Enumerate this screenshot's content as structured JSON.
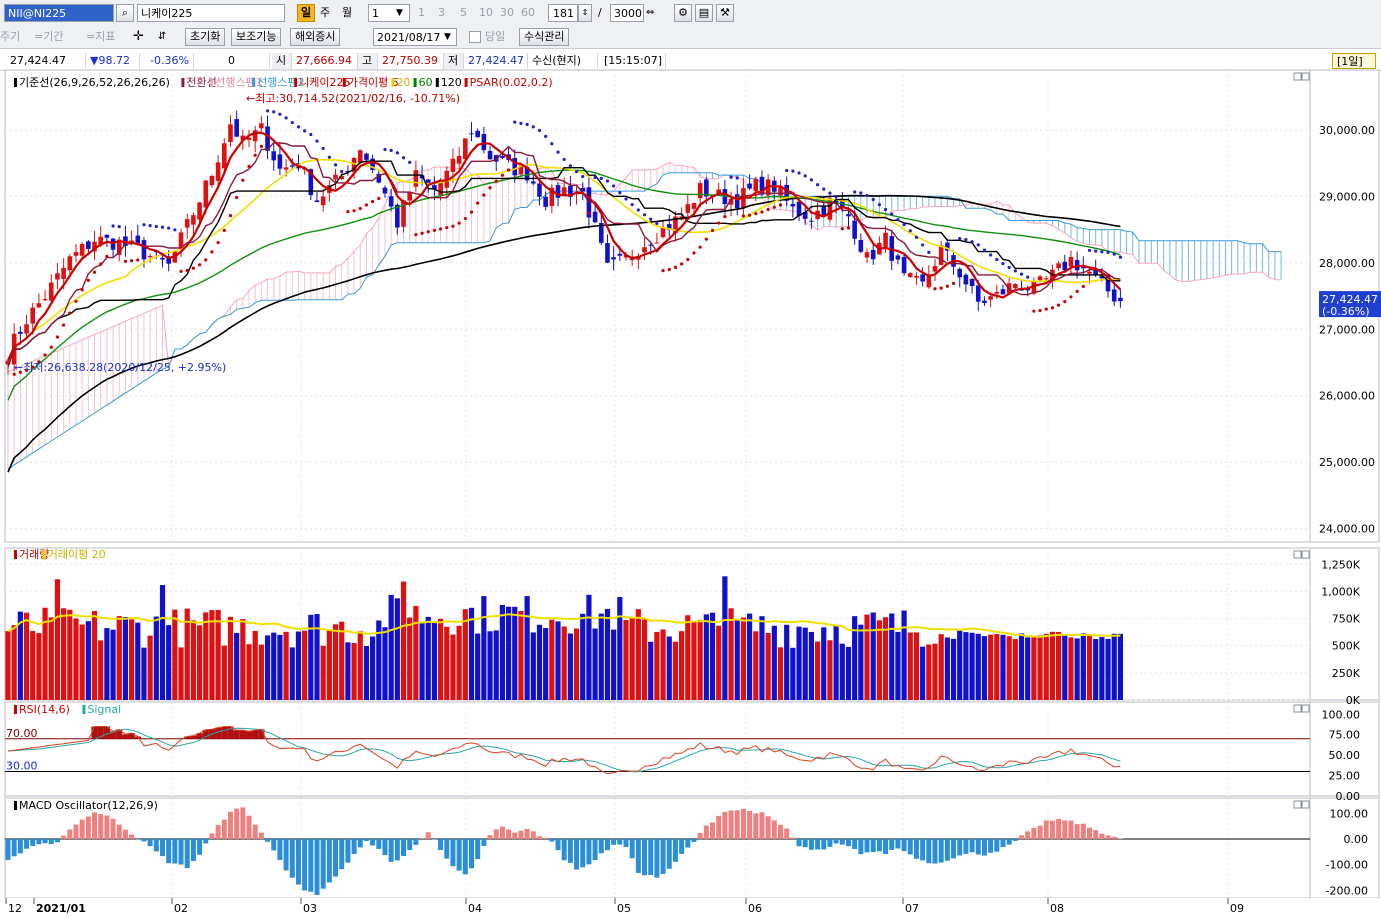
{
  "toolbar": {
    "symbol_code": "NII@NI225",
    "symbol_name": "니케이225",
    "period_day": "일",
    "period_week": "주",
    "period_month": "월",
    "interval_value": "1",
    "interval_options": [
      "1",
      "3",
      "5",
      "10",
      "30",
      "60"
    ],
    "bar_count": "181",
    "bar_total": "3000",
    "bar_sep": "/",
    "period_label": "주기",
    "range_label": "=기간",
    "indicator_label": "=지표",
    "reset_label": "초기화",
    "aux_label": "보조기능",
    "foreign_label": "해외증시",
    "date_value": "2021/08/17",
    "today_label": "당일",
    "formula_label": "수식관리"
  },
  "pricebar": {
    "last": "27,424.47",
    "change": "▼98.72",
    "change_pct": "-0.36%",
    "volume": "0",
    "open_label": "시",
    "open": "27,666.94",
    "high_label": "고",
    "high": "27,750.39",
    "low_label": "저",
    "low": "27,424.47",
    "mode": "수신(현지)",
    "time": "[15:15:07]",
    "unit_badge": "[1일]"
  },
  "legend_main": [
    {
      "text": "기준선(26,9,26,52,26,26,26)",
      "color": "#000000"
    },
    {
      "text": "전환선",
      "color": "#8b1a3a"
    },
    {
      "text": "선행스팬1",
      "color": "#f4a9b8"
    },
    {
      "text": "선행스팬2",
      "color": "#3b9ad9"
    },
    {
      "text": "니케이225",
      "color": "#cc0000"
    },
    {
      "text": "가격이평 5",
      "color": "#cc0000"
    },
    {
      "text": "20",
      "color": "#e6d000"
    },
    {
      "text": "60",
      "color": "#008000"
    },
    {
      "text": "120",
      "color": "#000000"
    },
    {
      "text": "PSAR(0.02,0.2)",
      "color": "#cc0000"
    }
  ],
  "annotations": {
    "high": "←최고:30,714.52(2021/02/16, -10.71%)",
    "low": "←최저:26,638.28(2020/12/25, +2.95%)",
    "last_price": "27,424.47",
    "last_change": "(-0.36%)"
  },
  "legend_volume": [
    {
      "text": "거래량",
      "color": "#cc0000"
    },
    {
      "text": "거래이평 20",
      "color": "#e6d000"
    }
  ],
  "legend_rsi": [
    {
      "text": "RSI(14,6)",
      "color": "#cc0000"
    },
    {
      "text": "Signal",
      "color": "#2aa7a7"
    }
  ],
  "rsi_levels": {
    "upper": "70.00",
    "lower": "30.00"
  },
  "legend_macd": [
    {
      "text": "MACD Oscillator(12,26,9)",
      "color": "#000000"
    }
  ],
  "colors": {
    "up": "#dd1111",
    "down": "#1111cc",
    "ma5": "#cc0000",
    "ma20": "#f0e000",
    "ma60": "#109010",
    "ma120": "#000000",
    "kijun": "#000000",
    "tenkan": "#8b1a3a",
    "span1": "#f4a9b8",
    "span2": "#3b9ad9",
    "psar_up": "#cc0000",
    "psar_down": "#2222cc",
    "vol_ma": "#f0e000",
    "rsi": "#e04020",
    "rsi_signal": "#2aa7a7",
    "macd_pos": "#f08080",
    "macd_neg": "#2a8fd8"
  },
  "chart_data": [
    {
      "type": "candlestick",
      "title": "",
      "series_name": "니케이225",
      "ylim": [
        23800,
        30900
      ],
      "y_ticks": [
        "30,000.00",
        "29,000.00",
        "28,000.00",
        "27,000.00",
        "26,000.00",
        "25,000.00",
        "24,000.00"
      ],
      "y_tick_values": [
        30000,
        29000,
        28000,
        27000,
        26000,
        25000,
        24000
      ],
      "x_labels": [
        "12",
        "2021/01",
        "02",
        "03",
        "04",
        "05",
        "06",
        "07",
        "08",
        "09"
      ],
      "overlays": [
        "기준선",
        "전환선",
        "선행스팬1",
        "선행스팬2",
        "가격이평 5",
        "20",
        "60",
        "120",
        "PSAR(0.02,0.2)"
      ],
      "anchors_close": [
        [
          0,
          26660
        ],
        [
          3,
          27150
        ],
        [
          6,
          27500
        ],
        [
          10,
          28050
        ],
        [
          14,
          28350
        ],
        [
          18,
          28300
        ],
        [
          22,
          28150
        ],
        [
          26,
          27950
        ],
        [
          29,
          28550
        ],
        [
          33,
          29350
        ],
        [
          36,
          30100
        ],
        [
          38,
          29800
        ],
        [
          41,
          30000
        ],
        [
          44,
          29400
        ],
        [
          47,
          29500
        ],
        [
          50,
          28950
        ],
        [
          54,
          29300
        ],
        [
          57,
          29750
        ],
        [
          60,
          29250
        ],
        [
          63,
          28600
        ],
        [
          66,
          29300
        ],
        [
          69,
          29100
        ],
        [
          72,
          29450
        ],
        [
          75,
          30000
        ],
        [
          78,
          29600
        ],
        [
          81,
          29450
        ],
        [
          84,
          29350
        ],
        [
          87,
          28950
        ],
        [
          90,
          29100
        ],
        [
          93,
          29050
        ],
        [
          95,
          28500
        ],
        [
          97,
          27900
        ],
        [
          100,
          28050
        ],
        [
          103,
          28300
        ],
        [
          106,
          28500
        ],
        [
          109,
          28700
        ],
        [
          112,
          29100
        ],
        [
          115,
          29000
        ],
        [
          118,
          28950
        ],
        [
          121,
          29150
        ],
        [
          124,
          29150
        ],
        [
          127,
          28800
        ],
        [
          130,
          28700
        ],
        [
          133,
          28900
        ],
        [
          136,
          28700
        ],
        [
          139,
          28050
        ],
        [
          142,
          28350
        ],
        [
          145,
          27750
        ],
        [
          148,
          27650
        ],
        [
          151,
          28200
        ],
        [
          154,
          27850
        ],
        [
          157,
          27400
        ],
        [
          160,
          27500
        ],
        [
          163,
          27700
        ],
        [
          166,
          27600
        ],
        [
          169,
          27800
        ],
        [
          172,
          28050
        ],
        [
          175,
          27850
        ],
        [
          177,
          27650
        ],
        [
          180,
          27424
        ]
      ]
    },
    {
      "type": "bar",
      "title": "",
      "series_name": "거래량",
      "ylim": [
        0,
        1400000
      ],
      "y_ticks": [
        "1,250K",
        "1,000K",
        "750K",
        "500K",
        "250K",
        "0K"
      ],
      "y_tick_values": [
        1250000,
        1000000,
        750000,
        500000,
        250000,
        0
      ]
    },
    {
      "type": "line",
      "title": "",
      "series_name": "RSI(14,6)",
      "ylim": [
        0,
        115
      ],
      "y_ticks": [
        "100.00",
        "75.00",
        "50.00",
        "25.00",
        "0.00"
      ],
      "y_tick_values": [
        100,
        75,
        50,
        25,
        0
      ],
      "levels": [
        70,
        30
      ]
    },
    {
      "type": "bar",
      "title": "",
      "series_name": "MACD Oscillator(12,26,9)",
      "ylim": [
        -230,
        160
      ],
      "y_ticks": [
        "100.00",
        "0.00",
        "-100.00",
        "-200.00"
      ],
      "y_tick_values": [
        100,
        0,
        -100,
        -200
      ],
      "anchors": [
        [
          0,
          -80
        ],
        [
          4,
          -30
        ],
        [
          8,
          -10
        ],
        [
          11,
          60
        ],
        [
          14,
          105
        ],
        [
          17,
          80
        ],
        [
          20,
          20
        ],
        [
          23,
          -30
        ],
        [
          26,
          -90
        ],
        [
          29,
          -110
        ],
        [
          31,
          -60
        ],
        [
          33,
          20
        ],
        [
          36,
          110
        ],
        [
          38,
          120
        ],
        [
          40,
          60
        ],
        [
          42,
          -10
        ],
        [
          45,
          -120
        ],
        [
          48,
          -200
        ],
        [
          50,
          -220
        ],
        [
          53,
          -150
        ],
        [
          56,
          -60
        ],
        [
          58,
          -10
        ],
        [
          60,
          -40
        ],
        [
          62,
          -90
        ],
        [
          64,
          -70
        ],
        [
          66,
          -20
        ],
        [
          68,
          30
        ],
        [
          70,
          -40
        ],
        [
          72,
          -110
        ],
        [
          74,
          -140
        ],
        [
          76,
          -80
        ],
        [
          78,
          20
        ],
        [
          80,
          50
        ],
        [
          82,
          30
        ],
        [
          84,
          40
        ],
        [
          86,
          10
        ],
        [
          88,
          -5
        ],
        [
          90,
          -80
        ],
        [
          92,
          -115
        ],
        [
          94,
          -100
        ],
        [
          96,
          -60
        ],
        [
          98,
          -20
        ],
        [
          100,
          -30
        ],
        [
          102,
          -130
        ],
        [
          105,
          -150
        ],
        [
          107,
          -120
        ],
        [
          109,
          -60
        ],
        [
          111,
          -10
        ],
        [
          113,
          50
        ],
        [
          116,
          110
        ],
        [
          119,
          115
        ],
        [
          122,
          100
        ],
        [
          124,
          70
        ],
        [
          126,
          40
        ],
        [
          128,
          -30
        ],
        [
          130,
          -40
        ],
        [
          132,
          -45
        ],
        [
          134,
          -20
        ],
        [
          136,
          -30
        ],
        [
          138,
          -55
        ],
        [
          140,
          -50
        ],
        [
          142,
          -55
        ],
        [
          144,
          -35
        ],
        [
          146,
          -60
        ],
        [
          148,
          -85
        ],
        [
          150,
          -95
        ],
        [
          152,
          -80
        ],
        [
          154,
          -65
        ],
        [
          156,
          -55
        ],
        [
          158,
          -60
        ],
        [
          160,
          -45
        ],
        [
          162,
          -25
        ],
        [
          164,
          10
        ],
        [
          166,
          40
        ],
        [
          168,
          70
        ],
        [
          171,
          75
        ],
        [
          174,
          55
        ],
        [
          177,
          25
        ],
        [
          180,
          0
        ]
      ]
    }
  ]
}
